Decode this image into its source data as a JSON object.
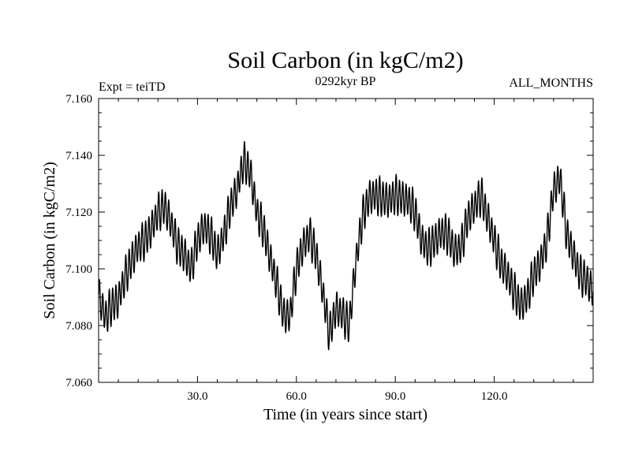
{
  "chart_data": {
    "type": "line",
    "title": "Soil Carbon (in kgC/m2)",
    "subtitle": "0292kyr BP",
    "experiment_label": "Expt = teiTD",
    "months_label": "ALL_MONTHS",
    "xlabel": "Time (in years since start)",
    "ylabel": "Soil Carbon (in kgC/m2)",
    "xlim": [
      0,
      150
    ],
    "ylim": [
      7.06,
      7.16
    ],
    "x_ticks": [
      30,
      60,
      90,
      120
    ],
    "x_tick_labels": [
      "30.0",
      "60.0",
      "90.0",
      "120.0"
    ],
    "y_ticks": [
      7.06,
      7.08,
      7.1,
      7.12,
      7.14,
      7.16
    ],
    "y_tick_labels": [
      "7.060",
      "7.080",
      "7.100",
      "7.120",
      "7.140",
      "7.160"
    ],
    "grid": false,
    "line_color": "#000000",
    "sampling": "monthly",
    "seasonal_amplitude": 0.006,
    "series": [
      {
        "name": "Soil Carbon",
        "x": [
          0,
          2,
          4,
          6,
          8,
          10,
          12,
          14,
          16,
          18,
          20,
          22,
          24,
          26,
          28,
          30,
          32,
          34,
          36,
          38,
          40,
          42,
          44,
          46,
          48,
          50,
          52,
          54,
          56,
          58,
          60,
          62,
          64,
          66,
          68,
          70,
          72,
          74,
          76,
          78,
          80,
          82,
          84,
          86,
          88,
          90,
          92,
          94,
          96,
          98,
          100,
          102,
          104,
          106,
          108,
          110,
          112,
          114,
          116,
          118,
          120,
          122,
          124,
          126,
          128,
          130,
          132,
          134,
          136,
          138,
          140,
          142,
          144,
          146,
          148,
          150
        ],
        "y": [
          7.091,
          7.083,
          7.087,
          7.089,
          7.097,
          7.103,
          7.108,
          7.11,
          7.114,
          7.12,
          7.122,
          7.116,
          7.108,
          7.105,
          7.1,
          7.11,
          7.115,
          7.112,
          7.105,
          7.112,
          7.122,
          7.128,
          7.138,
          7.134,
          7.12,
          7.114,
          7.104,
          7.095,
          7.084,
          7.083,
          7.1,
          7.108,
          7.112,
          7.105,
          7.092,
          7.077,
          7.086,
          7.084,
          7.08,
          7.102,
          7.118,
          7.125,
          7.126,
          7.125,
          7.124,
          7.126,
          7.125,
          7.124,
          7.12,
          7.11,
          7.107,
          7.11,
          7.113,
          7.112,
          7.106,
          7.108,
          7.118,
          7.122,
          7.126,
          7.118,
          7.11,
          7.102,
          7.098,
          7.092,
          7.087,
          7.09,
          7.098,
          7.102,
          7.11,
          7.128,
          7.132,
          7.112,
          7.105,
          7.098,
          7.096,
          7.092
        ]
      }
    ]
  }
}
